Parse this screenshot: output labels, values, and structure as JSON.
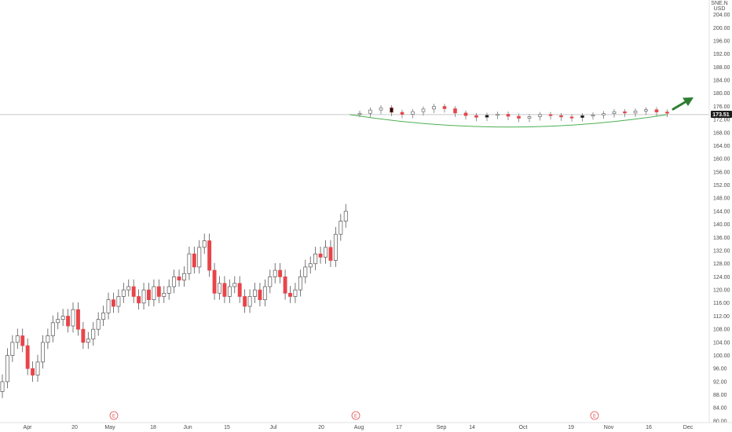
{
  "header": {
    "symbol_abbrev": "SNE.N",
    "currency": "USD"
  },
  "price_axis": {
    "ticks": [
      "204.00",
      "200.00",
      "196.00",
      "192.00",
      "188.00",
      "184.00",
      "180.00",
      "176.00",
      "172.00",
      "168.00",
      "164.00",
      "160.00",
      "156.00",
      "152.00",
      "148.00",
      "144.00",
      "140.00",
      "136.00",
      "132.00",
      "128.00",
      "124.00",
      "120.00",
      "116.00",
      "112.00",
      "108.00",
      "104.00",
      "100.00",
      "96.00",
      "92.00",
      "88.00",
      "84.00",
      "80.00"
    ],
    "last_price": "173.51"
  },
  "time_axis": {
    "labels": [
      "Apr",
      "20",
      "May",
      "18",
      "Jun",
      "15",
      "Jul",
      "20",
      "Aug",
      "17",
      "Sep",
      "14",
      "Oct",
      "19",
      "Nov",
      "16",
      "Dec"
    ]
  },
  "earnings_marker_label": "E",
  "colors": {
    "up": "#ffffff",
    "up_border": "#555555",
    "down": "#e8444a",
    "flat": "#111111",
    "projection_curve": "#4caf50",
    "arrow": "#2e7d32",
    "price_line": "#c8c8c8",
    "last_price_bg": "#1c1c1c"
  },
  "chart_data": {
    "type": "candlestick",
    "ylim": [
      80,
      208
    ],
    "last_price": 173.51,
    "earnings_dates": [
      "May",
      "Aug",
      "Nov"
    ],
    "series": [
      {
        "name": "",
        "values": [
          92,
          100,
          104,
          106,
          103,
          96,
          94,
          98,
          104,
          106,
          110,
          111,
          112,
          109,
          114,
          108,
          104,
          105,
          108,
          111,
          113,
          117,
          115,
          118,
          120,
          121,
          118,
          116,
          120,
          117,
          121,
          118,
          119,
          121,
          124,
          123,
          125,
          131,
          127,
          133,
          135,
          126,
          119,
          122,
          118,
          121,
          122,
          118,
          115,
          118,
          120,
          117,
          121,
          124,
          126,
          124,
          119,
          118,
          120,
          124,
          127,
          128,
          131,
          130,
          133,
          129,
          137,
          141,
          144
        ]
      },
      {
        "name": "projection",
        "values": [
          173.51,
          174.5,
          175.2,
          173.8,
          173.2,
          174.0,
          174.8,
          175.6,
          174.9,
          173.6,
          172.8,
          172.3,
          172.9,
          173.2,
          172.6,
          172.0,
          172.5,
          173.1,
          172.8,
          172.4,
          172.2,
          172.8,
          173.0,
          173.4,
          174.0,
          173.6,
          174.2,
          174.6,
          173.9,
          173.51
        ]
      }
    ]
  }
}
